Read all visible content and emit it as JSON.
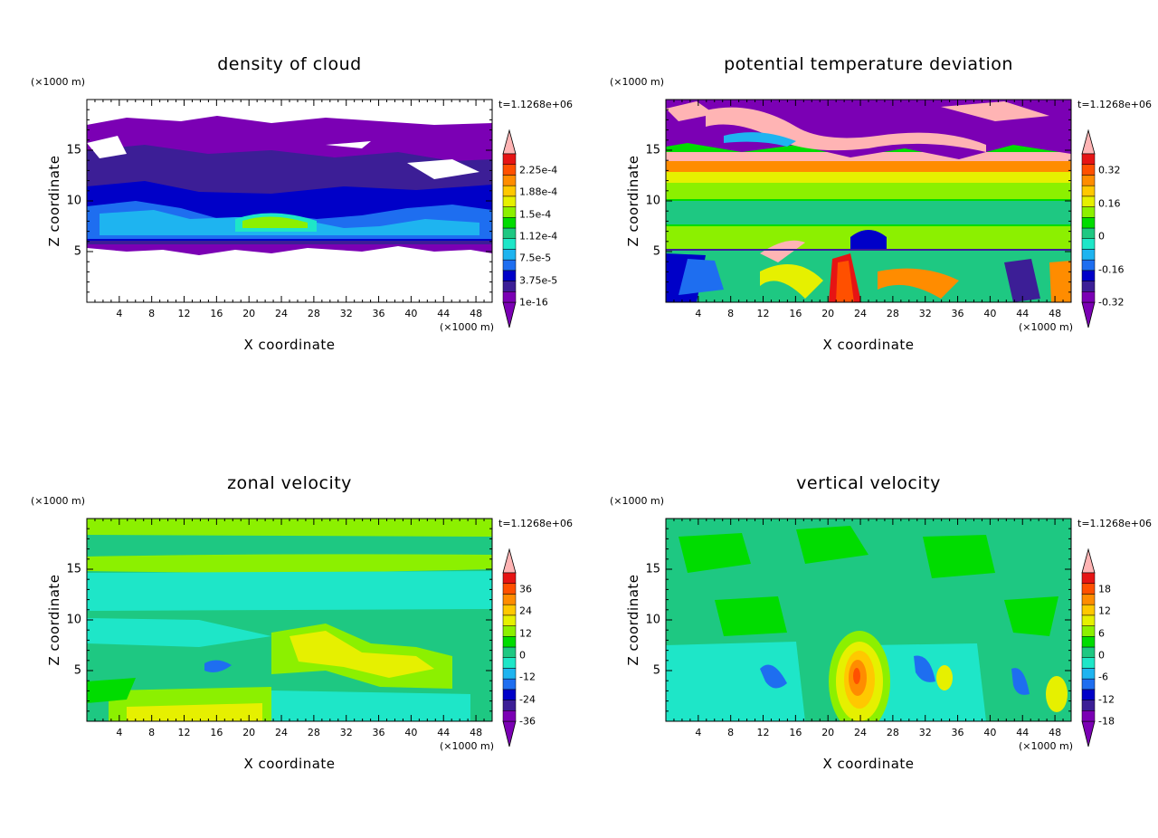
{
  "common": {
    "time_label": "t=1.1268e+06",
    "y_unit": "(×1000 m)",
    "x_unit": "(×1000 m)",
    "xlabel": "X coordinate",
    "ylabel": "Z coordinate"
  },
  "palette": [
    "#7b00b4",
    "#3c1e96",
    "#0000c8",
    "#1e6ef0",
    "#1eb4f0",
    "#1ee6c8",
    "#1ec882",
    "#00dc00",
    "#8cf000",
    "#e6f000",
    "#ffc800",
    "#ff8c00",
    "#ff5000",
    "#e61414",
    "#ffb4b4"
  ],
  "chart_data": [
    {
      "type": "heatmap",
      "title": "density of cloud",
      "xlabel": "X coordinate",
      "ylabel": "Z coordinate",
      "xlim": [
        0,
        50
      ],
      "ylim": [
        0,
        20
      ],
      "x_ticks": [
        4,
        8,
        12,
        16,
        20,
        24,
        28,
        32,
        36,
        40,
        44,
        48
      ],
      "y_ticks": [
        5,
        10,
        15
      ],
      "colorbar_labels": [
        "2.25e-4",
        "1.88e-4",
        "1.5e-4",
        "1.12e-4",
        "7.5e-5",
        "3.75e-5",
        "1e-16"
      ],
      "time": "t=1.1268e+06"
    },
    {
      "type": "heatmap",
      "title": "potential temperature deviation",
      "xlabel": "X coordinate",
      "ylabel": "Z coordinate",
      "xlim": [
        0,
        50
      ],
      "ylim": [
        0,
        20
      ],
      "x_ticks": [
        4,
        8,
        12,
        16,
        20,
        24,
        28,
        32,
        36,
        40,
        44,
        48
      ],
      "y_ticks": [
        5,
        10,
        15
      ],
      "colorbar_labels": [
        "0.32",
        "0.16",
        "0",
        "-0.16",
        "-0.32"
      ],
      "time": "t=1.1268e+06"
    },
    {
      "type": "heatmap",
      "title": "zonal velocity",
      "xlabel": "X coordinate",
      "ylabel": "Z coordinate",
      "xlim": [
        0,
        50
      ],
      "ylim": [
        0,
        20
      ],
      "x_ticks": [
        4,
        8,
        12,
        16,
        20,
        24,
        28,
        32,
        36,
        40,
        44,
        48
      ],
      "y_ticks": [
        5,
        10,
        15
      ],
      "colorbar_labels": [
        "36",
        "24",
        "12",
        "0",
        "-12",
        "-24",
        "-36"
      ],
      "time": "t=1.1268e+06"
    },
    {
      "type": "heatmap",
      "title": "vertical velocity",
      "xlabel": "X coordinate",
      "ylabel": "Z coordinate",
      "xlim": [
        0,
        50
      ],
      "ylim": [
        0,
        20
      ],
      "x_ticks": [
        4,
        8,
        12,
        16,
        20,
        24,
        28,
        32,
        36,
        40,
        44,
        48
      ],
      "y_ticks": [
        5,
        10,
        15
      ],
      "colorbar_labels": [
        "18",
        "12",
        "6",
        "0",
        "-6",
        "-12",
        "-18"
      ],
      "time": "t=1.1268e+06"
    }
  ]
}
